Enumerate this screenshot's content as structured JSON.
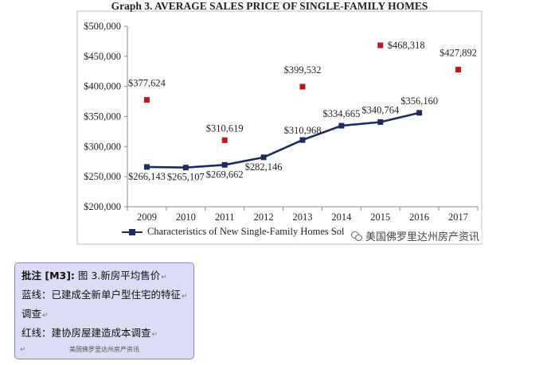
{
  "chart_data": {
    "type": "line",
    "title": "Graph 3. AVERAGE SALES PRICE OF SINGLE-FAMILY HOMES",
    "categories": [
      "2009",
      "2010",
      "2011",
      "2012",
      "2013",
      "2014",
      "2015",
      "2016",
      "2017"
    ],
    "y_ticks": [
      "$200,000",
      "$250,000",
      "$300,000",
      "$350,000",
      "$400,000",
      "$450,000",
      "$500,000"
    ],
    "ylim": [
      200000,
      500000
    ],
    "grid": false,
    "legend_position": "bottom-left",
    "series": [
      {
        "name": "Characteristics of New Single-Family Homes Sol",
        "style": "line",
        "color": "#1f2a60",
        "x": [
          "2009",
          "2010",
          "2011",
          "2012",
          "2013",
          "2014",
          "2015",
          "2016"
        ],
        "values": [
          266143,
          265107,
          269662,
          282146,
          310968,
          334665,
          340764,
          356160
        ],
        "labels": [
          "$266,143",
          "$265,107",
          "$269,662",
          "$282,146",
          "$310,968",
          "$334,665",
          "$340,764",
          "$356,160"
        ]
      },
      {
        "style": "marker",
        "color": "#c0161d",
        "x": [
          "2009",
          "2011",
          "2013",
          "2015",
          "2017"
        ],
        "values": [
          377624,
          310619,
          399532,
          468318,
          427892
        ],
        "labels": [
          "$377,624",
          "$310,619",
          "$399,532",
          "$468,318",
          "$427,892"
        ]
      }
    ]
  },
  "watermark": {
    "icon": "wechat-icon",
    "text": "美国佛罗里达州房产资讯"
  },
  "comment": {
    "heading": "批注 [M3]:",
    "heading_rest": " 图 3.新房平均售价",
    "lines": [
      "蓝线：已建成全新单户型住宅的特征",
      "调查",
      "红线：建协房屋建造成本调查"
    ],
    "footer": "美国佛罗里达州房产资讯"
  }
}
